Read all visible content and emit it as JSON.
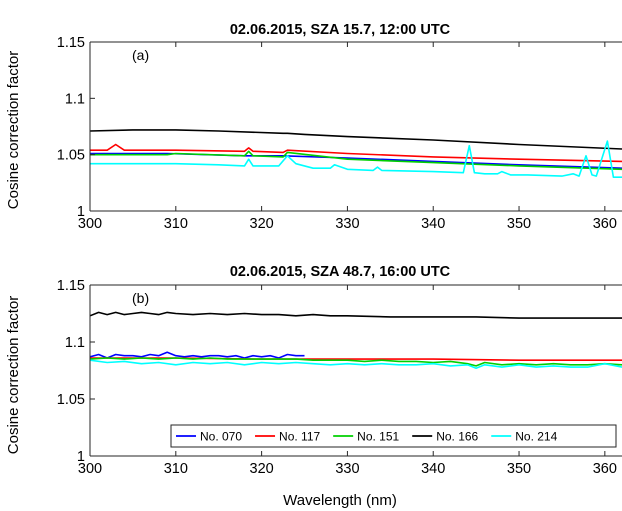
{
  "chart_data": [
    {
      "type": "line",
      "title": "02.06.2015, SZA 15.7, 12:00 UTC",
      "panel_label": "(a)",
      "xlabel": "",
      "ylabel": "Cosine correction factor",
      "xlim": [
        300,
        362
      ],
      "ylim": [
        1,
        1.15
      ],
      "xticks": [
        "300",
        "310",
        "320",
        "330",
        "340",
        "350",
        "360"
      ],
      "yticks": [
        "1",
        "1.05",
        "1.1",
        "1.15"
      ],
      "series": [
        {
          "name": "No. 070",
          "color": "#0000ff",
          "x": [
            300,
            309,
            318,
            322.5,
            330,
            340,
            350,
            362
          ],
          "y": [
            1.051,
            1.051,
            1.049,
            1.049,
            1.047,
            1.044,
            1.041,
            1.038
          ]
        },
        {
          "name": "No. 117",
          "color": "#ff0000",
          "x": [
            300,
            302,
            303,
            304,
            310,
            318,
            318.5,
            319,
            322.5,
            323,
            330,
            340,
            350,
            362
          ],
          "y": [
            1.054,
            1.054,
            1.059,
            1.054,
            1.054,
            1.053,
            1.056,
            1.053,
            1.052,
            1.054,
            1.051,
            1.048,
            1.046,
            1.044
          ]
        },
        {
          "name": "No. 151",
          "color": "#00d000",
          "x": [
            300,
            309,
            310,
            318,
            318.5,
            319,
            322.5,
            323,
            330,
            340,
            350,
            362
          ],
          "y": [
            1.05,
            1.05,
            1.051,
            1.049,
            1.053,
            1.049,
            1.048,
            1.052,
            1.046,
            1.043,
            1.04,
            1.037
          ]
        },
        {
          "name": "No. 166",
          "color": "#000000",
          "x": [
            300,
            305,
            309,
            309.5,
            310,
            315,
            322.5,
            323,
            325,
            330,
            340,
            350,
            362
          ],
          "y": [
            1.071,
            1.072,
            1.072,
            1.072,
            1.072,
            1.071,
            1.069,
            1.069,
            1.068,
            1.066,
            1.063,
            1.059,
            1.055
          ]
        },
        {
          "name": "No. 214",
          "color": "#00ffff",
          "x": [
            300,
            305,
            310,
            315,
            318,
            318.5,
            319,
            322,
            323,
            324,
            326,
            328,
            328.5,
            330,
            333,
            333.5,
            334,
            340,
            343.5,
            344.2,
            344.8,
            346,
            347.5,
            348,
            349,
            351,
            355,
            356.3,
            357,
            357.8,
            358.5,
            359,
            360.3,
            361,
            362
          ],
          "y": [
            1.042,
            1.042,
            1.042,
            1.041,
            1.04,
            1.046,
            1.04,
            1.04,
            1.049,
            1.042,
            1.038,
            1.038,
            1.041,
            1.037,
            1.036,
            1.039,
            1.036,
            1.035,
            1.034,
            1.058,
            1.034,
            1.033,
            1.033,
            1.035,
            1.032,
            1.032,
            1.031,
            1.033,
            1.031,
            1.049,
            1.032,
            1.031,
            1.062,
            1.03,
            1.03
          ]
        }
      ]
    },
    {
      "type": "line",
      "title": "02.06.2015, SZA 48.7, 16:00 UTC",
      "panel_label": "(b)",
      "xlabel": "Wavelength (nm)",
      "ylabel": "Cosine correction factor",
      "xlim": [
        300,
        362
      ],
      "ylim": [
        1,
        1.15
      ],
      "xticks": [
        "300",
        "310",
        "320",
        "330",
        "340",
        "350",
        "360"
      ],
      "yticks": [
        "1",
        "1.05",
        "1.1",
        "1.15"
      ],
      "legend": {
        "placement": "bottom-right",
        "entries": [
          "No. 070",
          "No. 117",
          "No. 151",
          "No. 166",
          "No. 214"
        ]
      },
      "series": [
        {
          "name": "No. 070",
          "color": "#0000ff",
          "x": [
            300,
            301,
            302,
            303,
            304,
            305,
            306,
            307,
            308,
            309,
            310,
            311,
            312,
            313,
            314,
            315,
            316,
            317,
            318,
            319,
            320,
            321,
            322,
            323,
            324,
            325
          ],
          "y": [
            1.087,
            1.089,
            1.086,
            1.089,
            1.088,
            1.088,
            1.087,
            1.089,
            1.088,
            1.091,
            1.088,
            1.087,
            1.088,
            1.087,
            1.088,
            1.088,
            1.087,
            1.088,
            1.086,
            1.088,
            1.087,
            1.088,
            1.086,
            1.089,
            1.088,
            1.088
          ]
        },
        {
          "name": "No. 117",
          "color": "#ff0000",
          "x": [
            300,
            310,
            320,
            330,
            340,
            350,
            362
          ],
          "y": [
            1.086,
            1.086,
            1.085,
            1.085,
            1.085,
            1.084,
            1.084
          ]
        },
        {
          "name": "No. 151",
          "color": "#00d000",
          "x": [
            300,
            302,
            304,
            306,
            308,
            310,
            312,
            314,
            316,
            318,
            320,
            322,
            324,
            326,
            328,
            330,
            332,
            334,
            336,
            338,
            340,
            342,
            344,
            345,
            346,
            348,
            350,
            352,
            354,
            356,
            358,
            360,
            362
          ],
          "y": [
            1.085,
            1.086,
            1.085,
            1.086,
            1.085,
            1.086,
            1.085,
            1.086,
            1.085,
            1.085,
            1.085,
            1.085,
            1.085,
            1.084,
            1.084,
            1.084,
            1.083,
            1.084,
            1.083,
            1.083,
            1.082,
            1.083,
            1.081,
            1.079,
            1.082,
            1.08,
            1.081,
            1.08,
            1.081,
            1.08,
            1.08,
            1.081,
            1.08
          ]
        },
        {
          "name": "No. 166",
          "color": "#000000",
          "x": [
            300,
            301,
            302,
            303,
            304,
            305,
            306,
            307,
            308,
            309,
            310,
            312,
            314,
            316,
            318,
            320,
            322,
            324,
            326,
            328,
            330,
            335,
            340,
            345,
            350,
            355,
            362
          ],
          "y": [
            1.123,
            1.126,
            1.124,
            1.126,
            1.124,
            1.125,
            1.126,
            1.125,
            1.124,
            1.126,
            1.125,
            1.124,
            1.125,
            1.124,
            1.125,
            1.124,
            1.124,
            1.123,
            1.124,
            1.123,
            1.123,
            1.122,
            1.122,
            1.122,
            1.121,
            1.121,
            1.121
          ]
        },
        {
          "name": "No. 214",
          "color": "#00ffff",
          "x": [
            300,
            302,
            304,
            306,
            308,
            310,
            312,
            314,
            316,
            318,
            320,
            322,
            324,
            326,
            328,
            330,
            332,
            334,
            336,
            338,
            340,
            342,
            344,
            345,
            346,
            348,
            350,
            352,
            354,
            356,
            358,
            360,
            362
          ],
          "y": [
            1.084,
            1.082,
            1.083,
            1.081,
            1.082,
            1.08,
            1.082,
            1.081,
            1.082,
            1.08,
            1.082,
            1.081,
            1.082,
            1.081,
            1.08,
            1.081,
            1.08,
            1.081,
            1.08,
            1.08,
            1.081,
            1.079,
            1.08,
            1.077,
            1.08,
            1.078,
            1.08,
            1.078,
            1.079,
            1.078,
            1.078,
            1.081,
            1.078
          ]
        }
      ]
    }
  ]
}
